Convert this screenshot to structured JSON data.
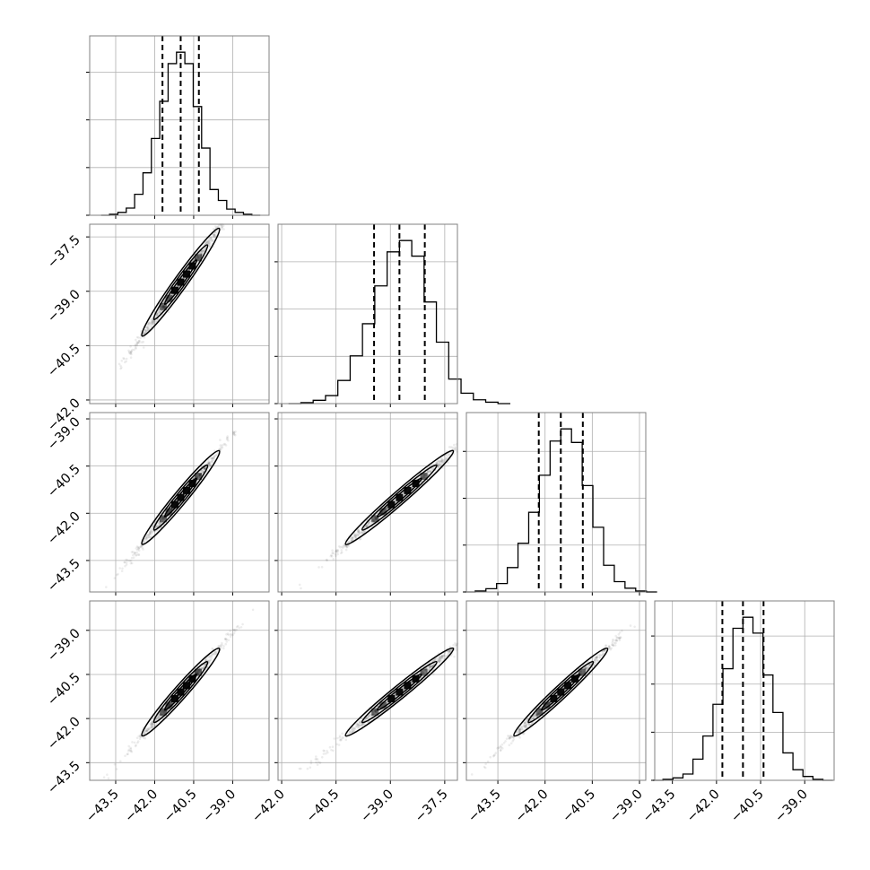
{
  "chart_data": {
    "type": "corner",
    "n_params": 4,
    "grid": true,
    "params": [
      {
        "range": [
          -44.5,
          -37.6
        ],
        "ticks": [
          -43.5,
          -42.0,
          -40.5,
          -39.0
        ],
        "tick_labels": [
          "−43.5",
          "−42.0",
          "−40.5",
          "−39.0"
        ],
        "quantiles": [
          -41.7,
          -41.0,
          -40.3
        ],
        "mean": -41.0,
        "sd": 0.68,
        "hist_counts": [
          0,
          2,
          6,
          15,
          44,
          89,
          161,
          239,
          318,
          342,
          318,
          228,
          141,
          54,
          31,
          13,
          6,
          2,
          0
        ]
      },
      {
        "range": [
          -42.1,
          -37.15
        ],
        "ticks": [
          -42.0,
          -40.5,
          -39.0,
          -37.5
        ],
        "tick_labels": [
          "−42.0",
          "−40.5",
          "−39.0",
          "−37.5"
        ],
        "quantiles": [
          -39.45,
          -38.75,
          -38.05
        ],
        "mean": -38.75,
        "sd": 0.68,
        "hist_counts": [
          0,
          2,
          7,
          17,
          49,
          101,
          169,
          249,
          321,
          345,
          312,
          215,
          130,
          52,
          22,
          8,
          3,
          0
        ]
      },
      {
        "range": [
          -44.5,
          -38.8
        ],
        "ticks": [
          -43.5,
          -42.0,
          -40.5,
          -39.0
        ],
        "tick_labels": [
          "−43.5",
          "−42.0",
          "−40.5",
          "−39.0"
        ],
        "quantiles": [
          -42.2,
          -41.5,
          -40.8
        ],
        "mean": -41.5,
        "sd": 0.68,
        "hist_counts": [
          0,
          2,
          7,
          18,
          52,
          104,
          170,
          249,
          322,
          348,
          319,
          227,
          138,
          57,
          22,
          8,
          2,
          0
        ]
      },
      {
        "range": [
          -44.1,
          -38.0
        ],
        "ticks": [
          -43.5,
          -42.0,
          -40.5,
          -39.0
        ],
        "tick_labels": [
          "−43.5",
          "−42.0",
          "−40.5",
          "−39.0"
        ],
        "quantiles": [
          -41.8,
          -41.1,
          -40.4
        ],
        "mean": -41.1,
        "sd": 0.68,
        "hist_counts": [
          0,
          2,
          5,
          13,
          44,
          92,
          158,
          232,
          316,
          339,
          306,
          219,
          141,
          57,
          22,
          8,
          2,
          0
        ]
      }
    ],
    "correlation": 0.999,
    "contour_levels": 3,
    "xlabel": "",
    "ylabel": "",
    "title": ""
  }
}
